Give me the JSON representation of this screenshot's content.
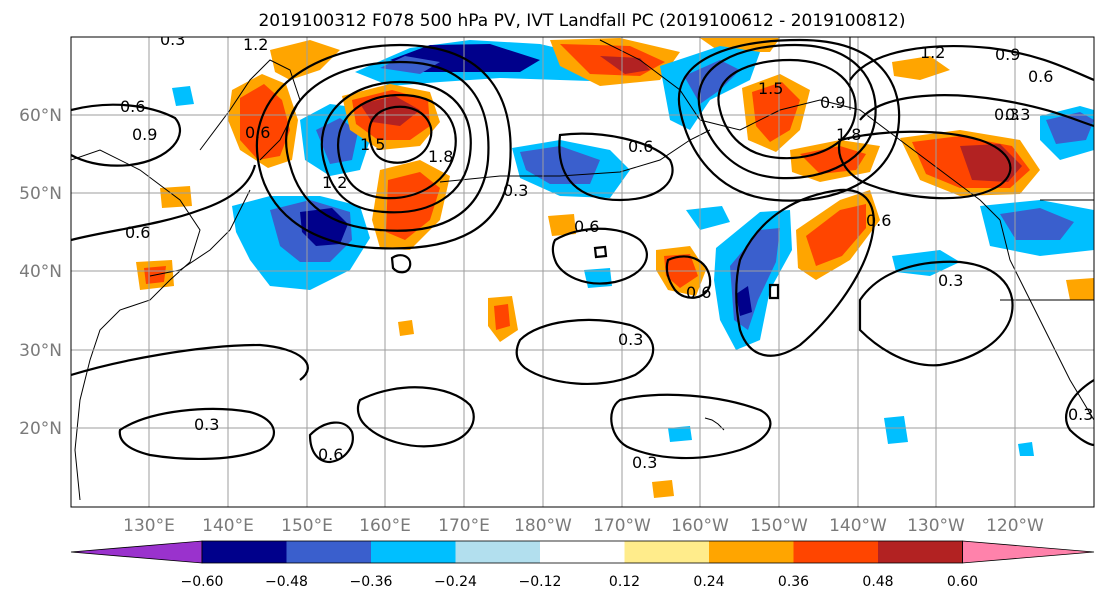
{
  "title": "2019100312 F078 500 hPa PV, IVT Landfall PC (2019100612 - 2019100812)",
  "latitude_labels": [
    "60°N",
    "50°N",
    "40°N",
    "30°N",
    "20°N"
  ],
  "longitude_labels": [
    "130°E",
    "140°E",
    "150°E",
    "160°E",
    "170°E",
    "180°W",
    "170°W",
    "160°W",
    "150°W",
    "140°W",
    "130°W",
    "120°W"
  ],
  "colorbar": {
    "colors": [
      "#9a32cd",
      "#00008b",
      "#3a5fcd",
      "#00bfff",
      "#b2dfee",
      "#ffffff",
      "#ffec8b",
      "#ffa500",
      "#ff4500",
      "#b22222",
      "#ff82ab"
    ],
    "tick_labels": [
      "−0.60",
      "−0.48",
      "−0.36",
      "−0.24",
      "−0.12",
      "0.12",
      "0.24",
      "0.36",
      "0.48",
      "0.60"
    ]
  },
  "contour_labels": [
    "0.6",
    "0.9",
    "1.2",
    "0.6",
    "0.6",
    "1.2",
    "1.5",
    "1.8",
    "0.3",
    "0.6",
    "0.6",
    "0.3",
    "0.6",
    "0.3",
    "0.3",
    "0.3",
    "0.6",
    "0.3",
    "1.2",
    "0.9",
    "0.6",
    "1.5",
    "1.8",
    "0.3",
    "0.6",
    "0.3",
    "0.3",
    "0.9"
  ]
}
